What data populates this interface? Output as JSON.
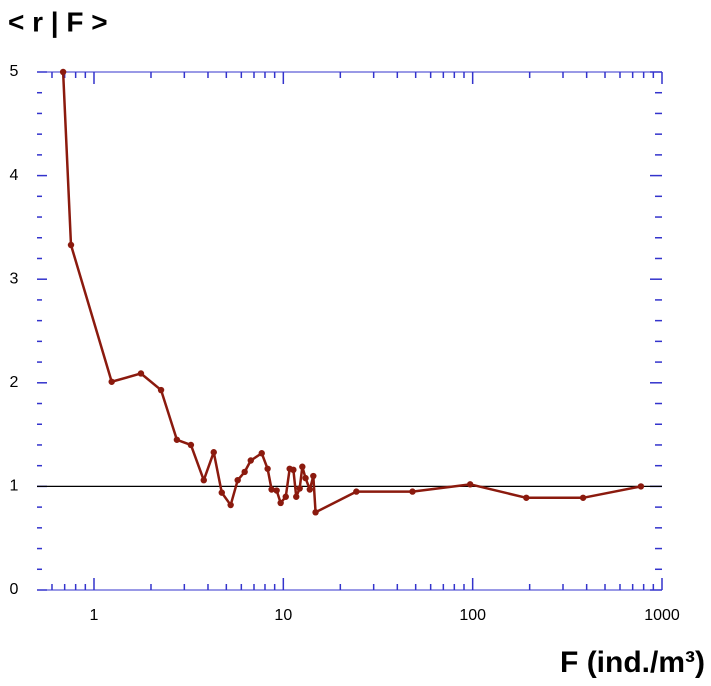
{
  "chart_data": {
    "type": "line",
    "title": "< r | F >",
    "xlabel": "F  (ind./m³)",
    "xscale": "log",
    "xlim": [
      0.5,
      1000
    ],
    "xticks": [
      1,
      10,
      100,
      1000
    ],
    "xminorticks": [
      0.6,
      0.7,
      0.8,
      0.9,
      2,
      3,
      4,
      5,
      6,
      7,
      8,
      9,
      20,
      30,
      40,
      50,
      60,
      70,
      80,
      90,
      200,
      300,
      400,
      500,
      600,
      700,
      800,
      900
    ],
    "ylim": [
      0,
      5
    ],
    "yticks": [
      0,
      1,
      2,
      3,
      4,
      5
    ],
    "yminorticks": [
      0.2,
      0.4,
      0.6,
      0.8,
      1.2,
      1.4,
      1.6,
      1.8,
      2.2,
      2.4,
      2.6,
      2.8,
      3.2,
      3.4,
      3.6,
      3.8,
      4.2,
      4.4,
      4.6,
      4.8
    ],
    "reference_line": 1,
    "axis_color": "#3333cc",
    "series": [
      {
        "color": "#8b1a0e",
        "x": [
          0.687,
          0.756,
          1.24,
          1.77,
          2.26,
          2.74,
          3.25,
          3.8,
          4.29,
          4.73,
          5.27,
          5.74,
          6.25,
          6.73,
          7.69,
          8.26,
          8.67,
          9.22,
          9.68,
          10.3,
          10.8,
          11.3,
          11.7,
          12.2,
          12.6,
          13.1,
          13.8,
          14.4,
          14.8,
          24.3,
          48.1,
          97,
          192,
          383,
          774
        ],
        "values": [
          5.0,
          3.33,
          2.01,
          2.09,
          1.93,
          1.45,
          1.4,
          1.06,
          1.33,
          0.94,
          0.82,
          1.06,
          1.14,
          1.25,
          1.32,
          1.17,
          0.97,
          0.96,
          0.84,
          0.9,
          1.17,
          1.16,
          0.9,
          0.98,
          1.19,
          1.08,
          0.97,
          1.1,
          0.75,
          0.95,
          0.95,
          1.02,
          0.89,
          0.89,
          1.0
        ]
      }
    ]
  }
}
